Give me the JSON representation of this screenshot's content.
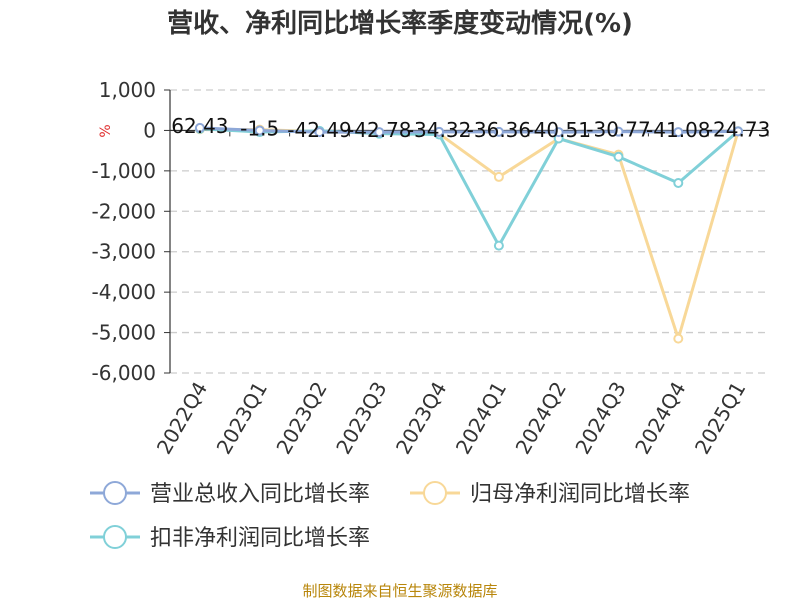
{
  "chart_data": {
    "type": "line",
    "title": "营收、净利同比增长率季度变动情况(%)",
    "ylabel": "%",
    "xlabel": "",
    "ylim": [
      -6000,
      1000
    ],
    "yticks": [
      1000,
      0,
      -1000,
      -2000,
      -3000,
      -4000,
      -5000,
      -6000
    ],
    "ytick_labels": [
      "1,000",
      "0",
      "-1,000",
      "-2,000",
      "-3,000",
      "-4,000",
      "-5,000",
      "-6,000"
    ],
    "categories": [
      "2022Q4",
      "2023Q1",
      "2023Q2",
      "2023Q3",
      "2023Q4",
      "2024Q1",
      "2024Q2",
      "2024Q3",
      "2024Q4",
      "2025Q1"
    ],
    "grid": true,
    "legend_position": "bottom",
    "series": [
      {
        "name": "营业总收入同比增长率",
        "color": "#8ea8d8",
        "values": [
          62.43,
          -1.5,
          -42.49,
          -42.78,
          -34.32,
          -36.36,
          -40.51,
          -30.77,
          -41.08,
          -24.73
        ],
        "labels": [
          "62.43",
          "-1.5",
          "-42.49",
          "-42.78",
          "-34.32",
          "-36.36",
          "-40.51",
          "-30.77",
          "-41.08",
          "-24.73"
        ]
      },
      {
        "name": "归母净利润同比增长率",
        "color": "#f8d898",
        "values": [
          30,
          20,
          -30,
          -60,
          -80,
          -1150,
          -200,
          -600,
          -5150,
          -20
        ]
      },
      {
        "name": "扣非净利润同比增长率",
        "color": "#80d0d8",
        "values": [
          40,
          -40,
          -10,
          -80,
          -100,
          -2850,
          -200,
          -650,
          -1300,
          -20
        ]
      }
    ]
  },
  "source": "制图数据来自恒生聚源数据库"
}
